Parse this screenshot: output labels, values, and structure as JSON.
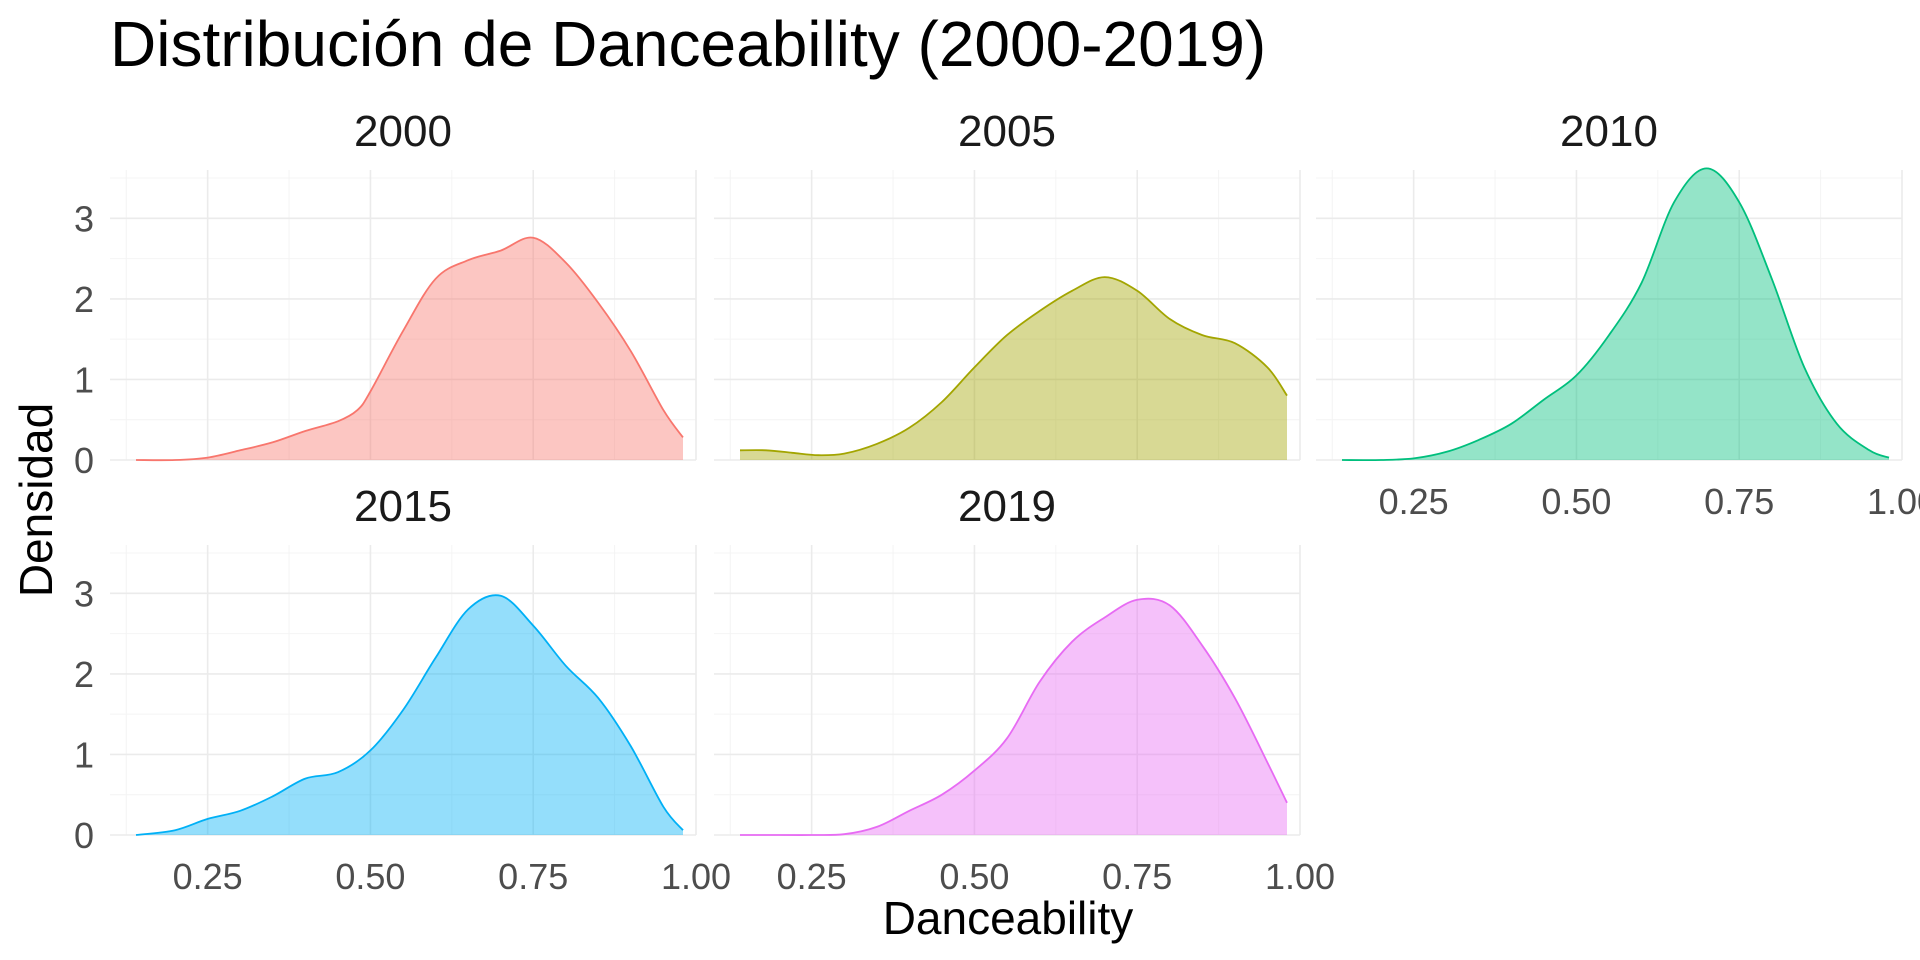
{
  "chart_data": {
    "type": "area",
    "chart_kind": "density",
    "title": "Distribución de Danceability (2000-2019)",
    "xlabel": "Danceability",
    "ylabel": "Densidad",
    "xlim": [
      0.1,
      1.0
    ],
    "ylim": [
      0,
      3.6
    ],
    "x_ticks": [
      0.25,
      0.5,
      0.75,
      1.0
    ],
    "x_tick_labels": [
      "0.25",
      "0.50",
      "0.75",
      "1.00"
    ],
    "y_ticks": [
      0,
      1,
      2,
      3
    ],
    "y_tick_labels": [
      "0",
      "1",
      "2",
      "3"
    ],
    "grid": true,
    "legend": "none",
    "facets": [
      {
        "label": "2000",
        "color": "#F8766D",
        "x": [
          0.14,
          0.2,
          0.25,
          0.3,
          0.35,
          0.4,
          0.45,
          0.48,
          0.5,
          0.55,
          0.6,
          0.65,
          0.7,
          0.75,
          0.8,
          0.85,
          0.9,
          0.95,
          0.98
        ],
        "y": [
          0.0,
          0.0,
          0.03,
          0.12,
          0.22,
          0.36,
          0.48,
          0.62,
          0.85,
          1.6,
          2.25,
          2.48,
          2.6,
          2.76,
          2.45,
          1.95,
          1.35,
          0.62,
          0.28
        ]
      },
      {
        "label": "2005",
        "color": "#A3A500",
        "x": [
          0.14,
          0.18,
          0.22,
          0.26,
          0.3,
          0.35,
          0.4,
          0.45,
          0.5,
          0.55,
          0.6,
          0.65,
          0.7,
          0.75,
          0.8,
          0.85,
          0.9,
          0.95,
          0.98
        ],
        "y": [
          0.12,
          0.12,
          0.09,
          0.06,
          0.08,
          0.2,
          0.4,
          0.72,
          1.15,
          1.55,
          1.85,
          2.1,
          2.27,
          2.1,
          1.75,
          1.55,
          1.45,
          1.15,
          0.8
        ]
      },
      {
        "label": "2010",
        "color": "#00BF7D",
        "x": [
          0.14,
          0.2,
          0.25,
          0.3,
          0.35,
          0.4,
          0.45,
          0.5,
          0.55,
          0.6,
          0.65,
          0.7,
          0.75,
          0.8,
          0.85,
          0.9,
          0.95,
          0.98
        ],
        "y": [
          0.0,
          0.0,
          0.02,
          0.1,
          0.25,
          0.45,
          0.75,
          1.05,
          1.55,
          2.2,
          3.2,
          3.62,
          3.2,
          2.25,
          1.15,
          0.45,
          0.12,
          0.03
        ]
      },
      {
        "label": "2015",
        "color": "#00B0F6",
        "x": [
          0.14,
          0.2,
          0.25,
          0.3,
          0.35,
          0.4,
          0.45,
          0.5,
          0.55,
          0.6,
          0.65,
          0.7,
          0.75,
          0.8,
          0.85,
          0.9,
          0.95,
          0.98
        ],
        "y": [
          0.0,
          0.06,
          0.2,
          0.3,
          0.48,
          0.7,
          0.78,
          1.05,
          1.55,
          2.2,
          2.8,
          2.97,
          2.6,
          2.1,
          1.7,
          1.1,
          0.35,
          0.06
        ]
      },
      {
        "label": "2019",
        "color": "#E76BF3",
        "x": [
          0.14,
          0.2,
          0.25,
          0.3,
          0.35,
          0.4,
          0.45,
          0.5,
          0.55,
          0.6,
          0.65,
          0.7,
          0.75,
          0.8,
          0.85,
          0.9,
          0.95,
          0.98
        ],
        "y": [
          0.0,
          0.0,
          0.0,
          0.01,
          0.1,
          0.3,
          0.5,
          0.8,
          1.2,
          1.9,
          2.4,
          2.7,
          2.92,
          2.85,
          2.35,
          1.7,
          0.9,
          0.4
        ]
      }
    ]
  }
}
